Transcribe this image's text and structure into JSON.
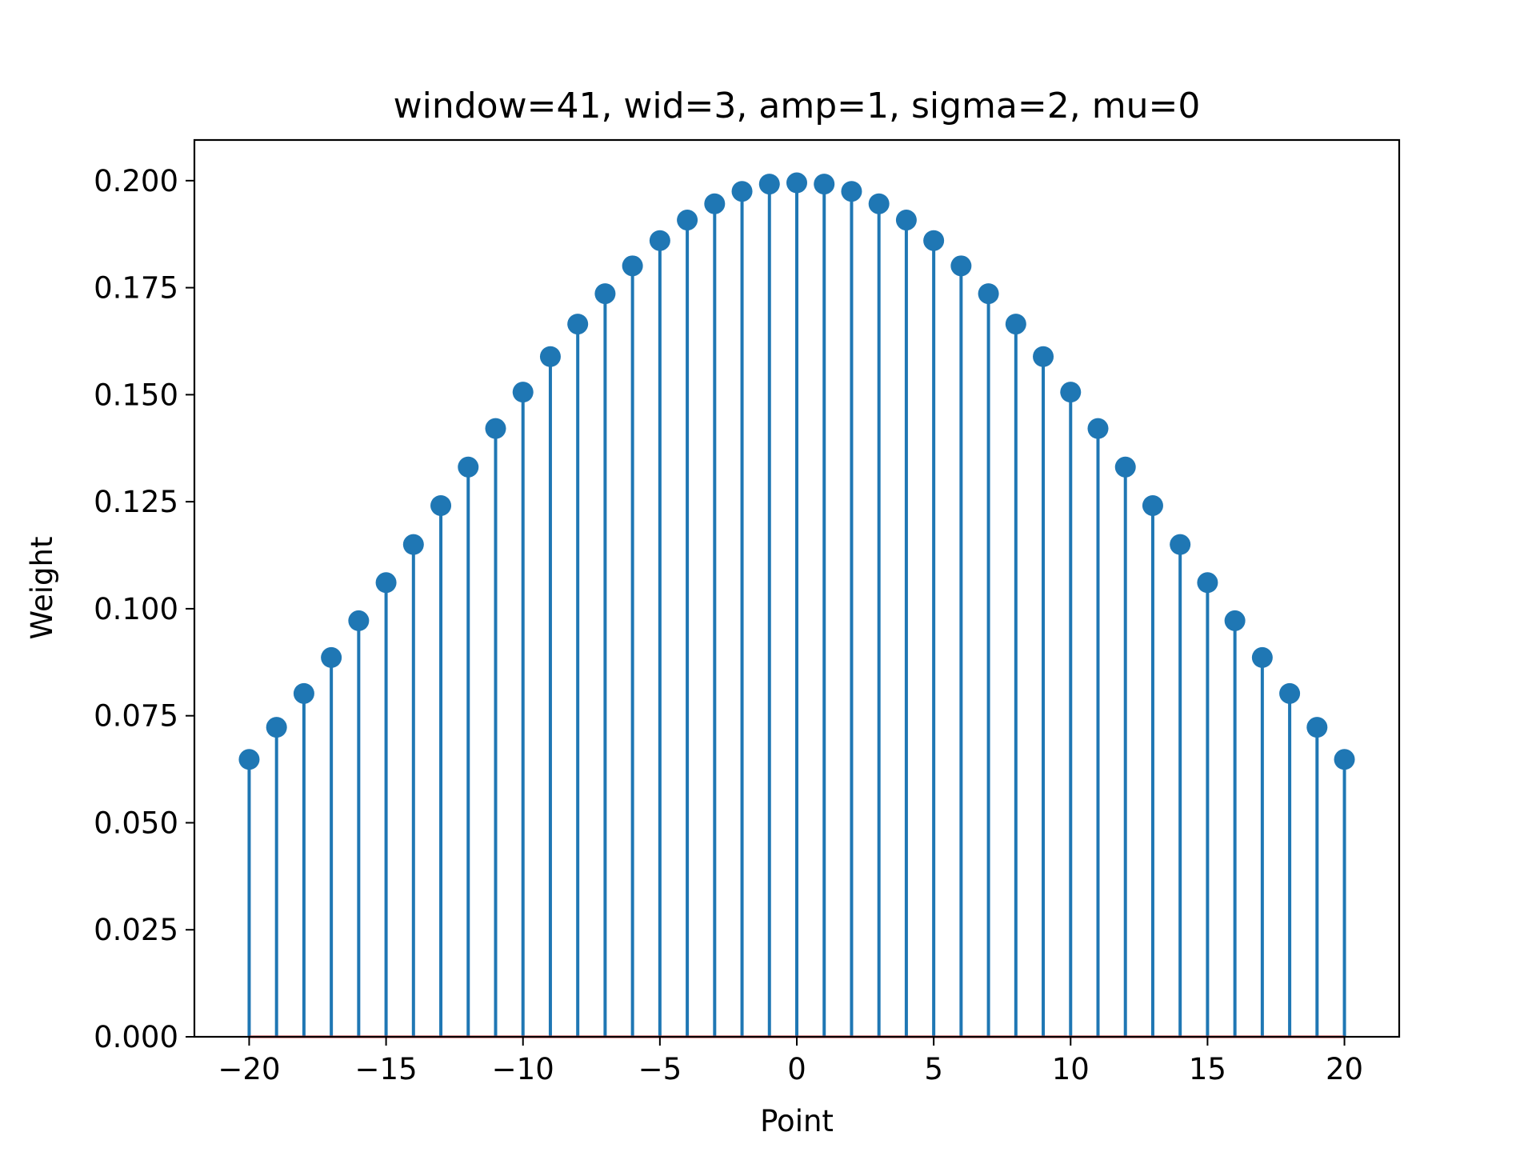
{
  "chart_data": {
    "type": "stem",
    "title": "window=41, wid=3, amp=1, sigma=2, mu=0",
    "xlabel": "Point",
    "ylabel": "Weight",
    "xlim": [
      -22,
      22
    ],
    "ylim": [
      0,
      0.2095
    ],
    "xticks": [
      -20,
      -15,
      -10,
      -5,
      0,
      5,
      10,
      15,
      20
    ],
    "xtick_labels": [
      "−20",
      "−15",
      "−10",
      "−5",
      "0",
      "5",
      "10",
      "15",
      "20"
    ],
    "yticks": [
      0,
      0.025,
      0.05,
      0.075,
      0.1,
      0.125,
      0.15,
      0.175,
      0.2
    ],
    "ytick_labels": [
      "0.000",
      "0.025",
      "0.050",
      "0.075",
      "0.100",
      "0.125",
      "0.150",
      "0.175",
      "0.200"
    ],
    "grid": false,
    "x": [
      -20,
      -19,
      -18,
      -17,
      -16,
      -15,
      -14,
      -13,
      -12,
      -11,
      -10,
      -9,
      -8,
      -7,
      -6,
      -5,
      -4,
      -3,
      -2,
      -1,
      0,
      1,
      2,
      3,
      4,
      5,
      6,
      7,
      8,
      9,
      10,
      11,
      12,
      13,
      14,
      15,
      16,
      17,
      18,
      19,
      20
    ],
    "y": [
      0.0648,
      0.0723,
      0.0802,
      0.0886,
      0.0972,
      0.1061,
      0.115,
      0.1241,
      0.1331,
      0.1421,
      0.1506,
      0.1589,
      0.1665,
      0.1736,
      0.1801,
      0.186,
      0.1908,
      0.1946,
      0.1975,
      0.1992,
      0.1995,
      0.1992,
      0.1975,
      0.1946,
      0.1908,
      0.186,
      0.1801,
      0.1736,
      0.1665,
      0.1589,
      0.1506,
      0.1421,
      0.1331,
      0.1241,
      0.115,
      0.1061,
      0.0972,
      0.0886,
      0.0802,
      0.0723,
      0.0648
    ],
    "colors": {
      "stem": "#1f77b4",
      "marker": "#1f77b4",
      "baseline": "#d62728",
      "axes": "#000000"
    }
  }
}
